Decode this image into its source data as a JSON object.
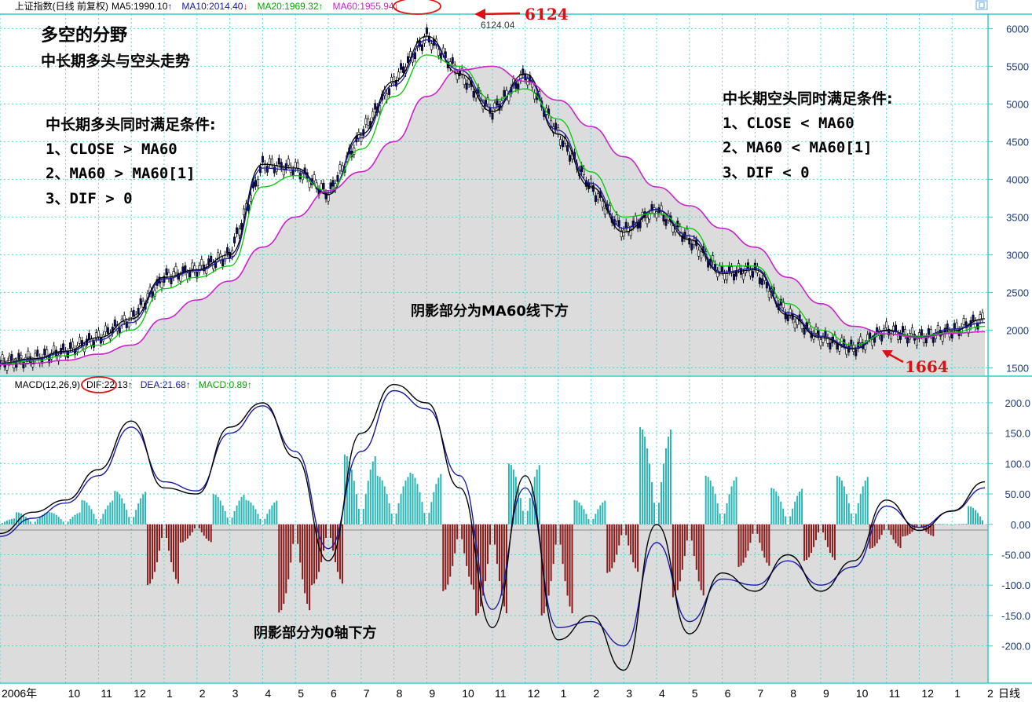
{
  "header": {
    "title": "上证指数(日线 前复权)",
    "ma5": "MA5:1990.10",
    "ma10": "MA10:2014.40",
    "ma20": "MA20:1969.32",
    "ma60": "MA60:1955.94",
    "ma5_arrow": "↑",
    "ma10_arrow": "↓",
    "ma20_arrow": "↑",
    "ma60_arrow": "↓"
  },
  "macd_header": {
    "name": "MACD(12,26,9)",
    "dif": "DIF:22.13",
    "dea": "DEA:21.68",
    "macd": "MACD:0.89",
    "dif_arrow": "↑",
    "dea_arrow": "↑",
    "macd_arrow": "↑"
  },
  "annotations": {
    "title1": "多空的分野",
    "title2": "中长期多头与空头走势",
    "bull_title": "中长期多头同时满足条件:",
    "bull_1": "1、CLOSE > MA60",
    "bull_2": "2、MA60 > MA60[1]",
    "bull_3": "3、DIF > 0",
    "bear_title": "中长期空头同时满足条件:",
    "bear_1": "1、CLOSE < MA60",
    "bear_2": "2、MA60 < MA60[1]",
    "bear_3": "3、DIF < 0",
    "price_shade": "阴影部分为MA60线下方",
    "macd_shade": "阴影部分为0轴下方",
    "peak_label": "6124",
    "peak_value": "6124.04",
    "trough_label": "1664",
    "start_value": "1547.91"
  },
  "colors": {
    "ma5": "#000000",
    "ma10": "#1a1aa6",
    "ma20": "#00cc00",
    "ma60": "#cc22cc",
    "shade": "#dcdcdc",
    "axis": "#33cccc",
    "hist_pos": "#2ab5b5",
    "hist_neg": "#8b1a1a",
    "annotation_red": "#dd1111"
  },
  "icons": {
    "minimize": "window-toggle-icon"
  },
  "chart_data": [
    {
      "type": "line",
      "title": "上证指数(日线 前复权)",
      "ylim": [
        1400,
        6150
      ],
      "yticks": [
        "6000",
        "5500",
        "5000",
        "4500",
        "4000",
        "3500",
        "3000",
        "2500",
        "2000",
        "1500"
      ],
      "ytick_values": [
        6000,
        5500,
        5000,
        4500,
        4000,
        3500,
        3000,
        2500,
        2000,
        1500
      ],
      "x_labels": [
        "2006年",
        "10",
        "11",
        "12",
        "1",
        "2",
        "3",
        "4",
        "5",
        "6",
        "7",
        "8",
        "9",
        "10",
        "11",
        "12",
        "1",
        "2",
        "3",
        "4",
        "5",
        "6",
        "7",
        "8",
        "9",
        "10",
        "11",
        "12",
        "1",
        "2",
        "日线"
      ],
      "x_index": [
        0,
        2,
        3,
        4,
        5,
        6,
        7,
        8,
        9,
        10,
        11,
        12,
        13,
        14,
        15,
        16,
        17,
        18,
        19,
        20,
        21,
        22,
        23,
        24,
        25,
        26,
        27,
        28,
        29,
        30
      ],
      "series": [
        {
          "name": "MA5",
          "x": [
            0,
            1,
            2,
            3,
            4,
            5,
            6,
            7,
            8,
            9,
            10,
            11,
            12,
            13,
            14,
            15,
            16,
            17,
            18,
            19,
            20,
            21,
            22,
            23,
            24,
            25,
            26,
            27,
            28,
            29,
            30
          ],
          "values": [
            1560,
            1620,
            1720,
            1900,
            2150,
            2700,
            2800,
            3000,
            4200,
            4150,
            3800,
            4600,
            5300,
            5900,
            5400,
            4900,
            5400,
            4600,
            3900,
            3300,
            3600,
            3200,
            2750,
            2800,
            2200,
            1900,
            1750,
            2000,
            1900,
            1990,
            2150
          ]
        },
        {
          "name": "MA10",
          "x": [
            0,
            1,
            2,
            3,
            4,
            5,
            6,
            7,
            8,
            9,
            10,
            11,
            12,
            13,
            14,
            15,
            16,
            17,
            18,
            19,
            20,
            21,
            22,
            23,
            24,
            25,
            26,
            27,
            28,
            29,
            30
          ],
          "values": [
            1555,
            1610,
            1700,
            1870,
            2100,
            2680,
            2790,
            2950,
            4150,
            4120,
            3820,
            4550,
            5250,
            5850,
            5450,
            4950,
            5350,
            4650,
            3950,
            3350,
            3600,
            3250,
            2770,
            2820,
            2230,
            1920,
            1760,
            1990,
            1910,
            2014,
            2100
          ]
        },
        {
          "name": "MA20",
          "x": [
            0,
            1,
            2,
            3,
            4,
            5,
            6,
            7,
            8,
            9,
            10,
            11,
            12,
            13,
            14,
            15,
            16,
            17,
            18,
            19,
            20,
            21,
            22,
            23,
            24,
            25,
            26,
            27,
            28,
            29,
            30
          ],
          "values": [
            1550,
            1590,
            1660,
            1800,
            2000,
            2550,
            2700,
            2850,
            3900,
            4050,
            3850,
            4400,
            5100,
            5650,
            5500,
            5050,
            5200,
            4800,
            4100,
            3500,
            3550,
            3350,
            2850,
            2850,
            2350,
            2000,
            1800,
            1950,
            1920,
            1969,
            2050
          ]
        },
        {
          "name": "MA60",
          "x": [
            0,
            1,
            2,
            3,
            4,
            5,
            6,
            7,
            8,
            9,
            10,
            11,
            12,
            13,
            14,
            15,
            16,
            17,
            18,
            19,
            20,
            21,
            22,
            23,
            24,
            25,
            26,
            27,
            28,
            29,
            30
          ],
          "values": [
            1540,
            1560,
            1600,
            1680,
            1800,
            2150,
            2400,
            2650,
            3100,
            3500,
            3850,
            4100,
            4500,
            5100,
            5450,
            5500,
            5300,
            5050,
            4700,
            4300,
            3900,
            3650,
            3350,
            3100,
            2700,
            2350,
            2050,
            1950,
            1900,
            1956,
            1980
          ]
        }
      ]
    },
    {
      "type": "bar",
      "title": "MACD(12,26,9)",
      "ylim": [
        -260,
        240
      ],
      "yticks": [
        "200.0",
        "150.0",
        "100.0",
        "50.00",
        "0.00",
        "-50.00",
        "-100.0",
        "-150.0",
        "-200.0"
      ],
      "ytick_values": [
        200,
        150,
        100,
        50,
        0,
        -50,
        -100,
        -150,
        -200
      ],
      "series": [
        {
          "name": "DIF",
          "x": [
            0,
            1,
            2,
            3,
            4,
            5,
            6,
            7,
            8,
            9,
            10,
            11,
            12,
            13,
            14,
            15,
            16,
            17,
            18,
            19,
            20,
            21,
            22,
            23,
            24,
            25,
            26,
            27,
            28,
            29,
            30
          ],
          "values": [
            -15,
            20,
            40,
            90,
            170,
            60,
            50,
            160,
            200,
            110,
            -60,
            150,
            230,
            200,
            60,
            -170,
            80,
            -190,
            -150,
            -240,
            0,
            -180,
            -80,
            -110,
            -50,
            -110,
            -60,
            40,
            -10,
            22,
            70
          ]
        },
        {
          "name": "DEA",
          "x": [
            0,
            1,
            2,
            3,
            4,
            5,
            6,
            7,
            8,
            9,
            10,
            11,
            12,
            13,
            14,
            15,
            16,
            17,
            18,
            19,
            20,
            21,
            22,
            23,
            24,
            25,
            26,
            27,
            28,
            29,
            30
          ],
          "values": [
            -20,
            10,
            35,
            80,
            160,
            70,
            55,
            150,
            195,
            120,
            -40,
            120,
            220,
            190,
            80,
            -140,
            60,
            -170,
            -160,
            -200,
            -30,
            -160,
            -90,
            -100,
            -60,
            -100,
            -70,
            30,
            -5,
            21.68,
            60
          ]
        },
        {
          "name": "MACD",
          "x": [
            0,
            1,
            2,
            3,
            4,
            5,
            6,
            7,
            8,
            9,
            10,
            11,
            12,
            13,
            14,
            15,
            16,
            17,
            18,
            19,
            20,
            21,
            22,
            23,
            24,
            25,
            26,
            27,
            28,
            29,
            30
          ],
          "values": [
            10,
            20,
            20,
            40,
            55,
            -100,
            -30,
            50,
            40,
            -145,
            -100,
            115,
            80,
            85,
            -110,
            -150,
            100,
            -150,
            40,
            -80,
            160,
            -120,
            80,
            -70,
            60,
            -60,
            80,
            -40,
            -20,
            0.89,
            30
          ]
        }
      ]
    }
  ]
}
